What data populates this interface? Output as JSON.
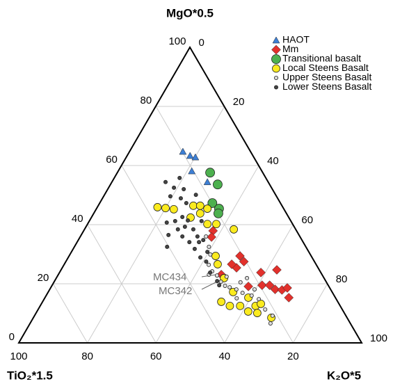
{
  "chart_data": {
    "type": "ternary",
    "axes": {
      "top": "MgO*0.5",
      "left": "TiO₂*1.5",
      "right": "K₂O*5"
    },
    "mgo_ticks": [
      0,
      20,
      40,
      60,
      80,
      100
    ],
    "k2o_ticks": [
      0,
      20,
      40,
      60,
      80,
      100
    ],
    "tio2_ticks": [
      20,
      40,
      60,
      80,
      100
    ],
    "grid": true,
    "legend": "top-right",
    "series": [
      {
        "name": "HAOT",
        "marker": "triangle",
        "color": "#3d7fd4",
        "mgo": [
          64.7,
          63.3,
          62.8,
          58.1,
          54.4
        ],
        "k2o": [
          15.5,
          18.3,
          20.1,
          21.4,
          27.8
        ]
      },
      {
        "name": "Mm",
        "marker": "diamond",
        "color": "#e2312c",
        "mgo": [
          37.9,
          35.8,
          25.4,
          29.4,
          27.5,
          26.6,
          23.1,
          23.8,
          24.7,
          19.1,
          19.5,
          19.5,
          18.1,
          17.9,
          18.6,
          15.3
        ],
        "k2o": [
          37.7,
          38.3,
          50.8,
          49.8,
          51.9,
          48.8,
          47.5,
          58.7,
          62.9,
          57.4,
          61.2,
          63.4,
          65.7,
          67.8,
          69.0,
          71.1
        ]
      },
      {
        "name": "Transitional basalt",
        "marker": "big-circle",
        "color": "#4db04f",
        "mgo": [
          57.6,
          53.6,
          47.3,
          45.4,
          43.8
        ],
        "k2o": [
          27.0,
          31.2,
          32.8,
          35.7,
          36.3
        ]
      },
      {
        "name": "Local Steens Basalt",
        "marker": "circle",
        "color": "#fbeb1f",
        "mgo": [
          45.9,
          45.6,
          45.2,
          46.4,
          46.4,
          45.4,
          43.8,
          42.4,
          40.2,
          40.2,
          38.4,
          29.4,
          26.6,
          21.9,
          13.9,
          17.2,
          12.5,
          15.3,
          12.5,
          12.5,
          13.2,
          10.6,
          10.1,
          8.5
        ],
        "k2o": [
          17.5,
          20.0,
          22.6,
          27.7,
          29.7,
          32.3,
          31.0,
          28.9,
          34.9,
          37.5,
          43.5,
          42.7,
          44.7,
          48.9,
          52.1,
          53.9,
          55.3,
          59.3,
          58.3,
          62.8,
          64.0,
          61.6,
          64.5,
          69.4
        ]
      },
      {
        "name": "Upper  Steens Basalt",
        "marker": "small-circle",
        "color": "#dcdcdc",
        "mgo": [
          36.0,
          32.5,
          29.9,
          26.4,
          24.2,
          22.8,
          20.7,
          19.3,
          18.8,
          18.1,
          20.5,
          21.9,
          16.9,
          16.0,
          18.1,
          15.1,
          14.8,
          11.3,
          9.2,
          6.6,
          22.4,
          23.1
        ],
        "k2o": [
          36.6,
          39.2,
          40.9,
          42.2,
          44.3,
          46.4,
          48.6,
          50.5,
          52.1,
          54.4,
          54.4,
          55.6,
          56.8,
          59.9,
          59.7,
          56.0,
          62.6,
          66.2,
          69.4,
          70.1,
          49.4,
          43.9
        ]
      },
      {
        "name": "Lower Steens Basalt",
        "marker": "small-circle",
        "color": "#444444",
        "mgo": [
          54.4,
          55.8,
          52.5,
          52.0,
          48.9,
          47.3,
          50.1,
          49.6,
          40.7,
          41.2,
          42.6,
          41.4,
          39.3,
          38.4,
          36.5,
          36.0,
          38.4,
          36.0,
          34.1,
          34.1,
          31.8,
          34.8,
          30.8,
          28.9,
          32.5,
          27.5,
          23.8,
          20.9,
          19.5,
          41.2
        ],
        "k2o": [
          15.6,
          19.0,
          19.0,
          22.1,
          22.8,
          25.2,
          26.6,
          19.4,
          22.8,
          25.0,
          26.4,
          28.6,
          28.8,
          27.2,
          25.4,
          29.7,
          31.7,
          34.1,
          32.7,
          35.5,
          35.4,
          36.4,
          39.6,
          38.5,
          27.0,
          40.9,
          43.9,
          47.4,
          48.7,
          32.7
        ]
      }
    ],
    "annotations": [
      "MC434",
      "MC342"
    ]
  }
}
